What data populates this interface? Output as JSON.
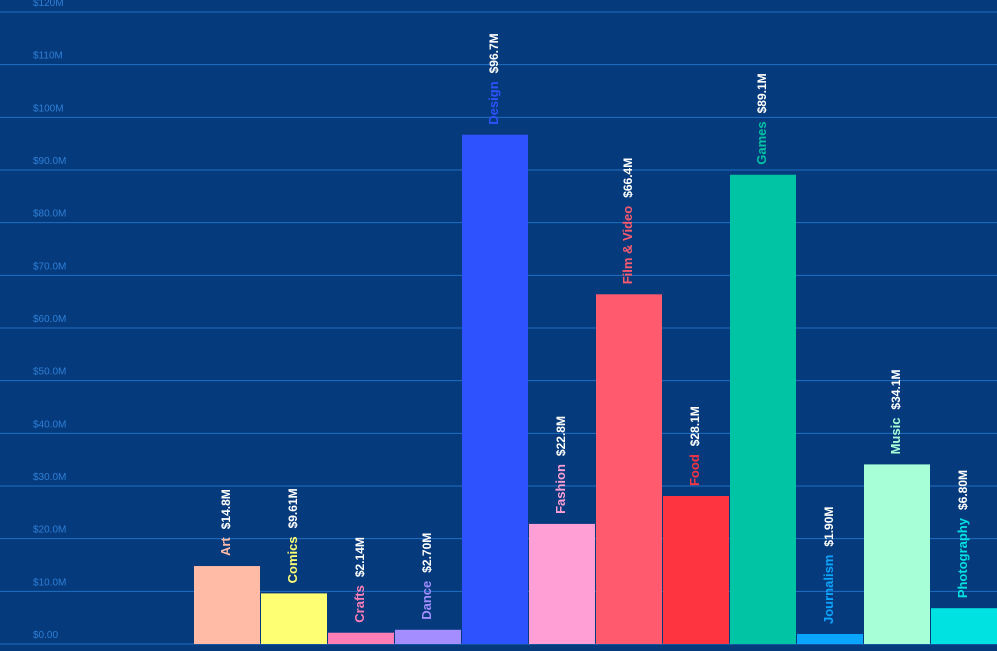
{
  "chart_data": {
    "type": "bar",
    "title": "",
    "xlabel": "",
    "ylabel": "",
    "ylim": [
      0,
      120
    ],
    "grid": true,
    "legend": "none",
    "y_ticks": [
      {
        "value": 0,
        "label": "$0.00"
      },
      {
        "value": 10,
        "label": "$10.0M"
      },
      {
        "value": 20,
        "label": "$20.0M"
      },
      {
        "value": 30,
        "label": "$30.0M"
      },
      {
        "value": 40,
        "label": "$40.0M"
      },
      {
        "value": 50,
        "label": "$50.0M"
      },
      {
        "value": 60,
        "label": "$60.0M"
      },
      {
        "value": 70,
        "label": "$70.0M"
      },
      {
        "value": 80,
        "label": "$80.0M"
      },
      {
        "value": 90,
        "label": "$90.0M"
      },
      {
        "value": 100,
        "label": "$100M"
      },
      {
        "value": 110,
        "label": "$110M"
      },
      {
        "value": 120,
        "label": "$120M"
      }
    ],
    "categories": [
      "Art",
      "Comics",
      "Crafts",
      "Dance",
      "Design",
      "Fashion",
      "Film & Video",
      "Food",
      "Games",
      "Journalism",
      "Music",
      "Photography"
    ],
    "values": [
      14.8,
      9.61,
      2.14,
      2.7,
      96.7,
      22.8,
      66.4,
      28.1,
      89.1,
      1.9,
      34.1,
      6.8
    ],
    "value_labels": [
      "$14.8M",
      "$9.61M",
      "$2.14M",
      "$2.70M",
      "$96.7M",
      "$22.8M",
      "$66.4M",
      "$28.1M",
      "$89.1M",
      "$1.90M",
      "$34.1M",
      "$6.80M"
    ],
    "colors": [
      "#ffbba5",
      "#ffff73",
      "#ff7eb6",
      "#a38dff",
      "#2f52ff",
      "#ff9fd5",
      "#ff5a6e",
      "#ff3441",
      "#00c4a4",
      "#0aa5ff",
      "#a6ffd6",
      "#00e2e2"
    ],
    "background": "#053a7c",
    "grid_color": "#1f6fc2",
    "tick_color": "#2f7fd6",
    "value_label_color": "#ffffff"
  }
}
